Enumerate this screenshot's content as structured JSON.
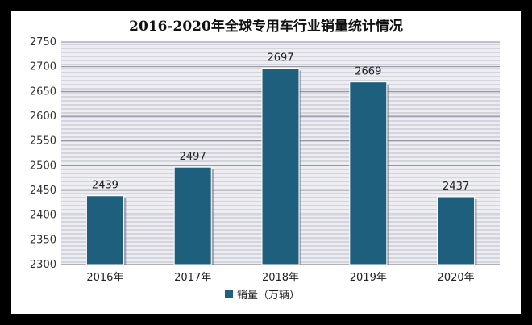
{
  "chart_data": {
    "type": "bar",
    "title": "2016-2020年全球专用车行业销量统计情况",
    "categories": [
      "2016年",
      "2017年",
      "2018年",
      "2019年",
      "2020年"
    ],
    "series": [
      {
        "name": "销量（万辆）",
        "values": [
          2439,
          2497,
          2697,
          2669,
          2437
        ]
      }
    ],
    "ylim": [
      2300,
      2750
    ],
    "yticks": [
      2300,
      2350,
      2400,
      2450,
      2500,
      2550,
      2600,
      2650,
      2700,
      2750
    ],
    "grid": true,
    "legend_position": "bottom",
    "xlabel": "",
    "ylabel": ""
  },
  "colors": {
    "bar": "#1f5f7e",
    "frame": "#000000",
    "background": "#ffffff",
    "plot_background": "#eeeef2",
    "grid": "#8a8a99"
  }
}
